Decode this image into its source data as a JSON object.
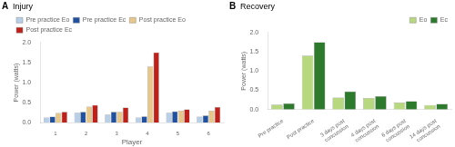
{
  "chart_data": [
    {
      "type": "bar",
      "title": "Injury",
      "annotations": [
        "A"
      ],
      "xlabel": "Player",
      "ylabel": "Power (watts)",
      "categories": [
        "1",
        "2",
        "3",
        "4",
        "5",
        "6"
      ],
      "series": [
        {
          "name": "Pre practice Eo",
          "color": "#b8cfe8",
          "values": [
            0.13,
            0.25,
            0.2,
            0.13,
            0.25,
            0.15
          ]
        },
        {
          "name": "Pre practice Ec",
          "color": "#2050a0",
          "values": [
            0.15,
            0.27,
            0.27,
            0.16,
            0.28,
            0.18
          ]
        },
        {
          "name": "Post practice Eo",
          "color": "#e8c88a",
          "values": [
            0.24,
            0.4,
            0.27,
            1.4,
            0.3,
            0.3
          ]
        },
        {
          "name": "Post practice Ec",
          "color": "#c0201a",
          "values": [
            0.27,
            0.44,
            0.38,
            1.75,
            0.33,
            0.39
          ]
        }
      ],
      "ylim": [
        0,
        2.0
      ],
      "yticks": [
        {
          "value": 0,
          "label": "0.0"
        },
        0.5,
        {
          "value": 1,
          "label": "1.0"
        },
        1.5,
        {
          "value": 2,
          "label": "2.0"
        }
      ],
      "grid": false,
      "legend": "upper left"
    },
    {
      "type": "bar",
      "title": "Recovery",
      "annotations": [
        "B"
      ],
      "ylabel": "Power (watts)",
      "categories": [
        "Pre practice",
        "Post practice",
        "3 days post\nconcussion",
        "4 days post\nconcussion",
        "6 days post\nconcussion",
        "14 days post\nconcussion"
      ],
      "series": [
        {
          "name": "Eo",
          "color": "#b8d880",
          "values": [
            0.13,
            1.4,
            0.31,
            0.3,
            0.18,
            0.12
          ]
        },
        {
          "name": "Ec",
          "color": "#2d7a2d",
          "values": [
            0.16,
            1.75,
            0.47,
            0.35,
            0.22,
            0.15
          ]
        }
      ],
      "ylim": [
        0,
        2.0
      ],
      "yticks": [
        {
          "value": 0,
          "label": "0.0"
        },
        0.5,
        {
          "value": 1,
          "label": "1.0"
        },
        1.5,
        {
          "value": 2,
          "label": "2.0"
        }
      ],
      "grid": false,
      "legend": "upper right"
    }
  ]
}
